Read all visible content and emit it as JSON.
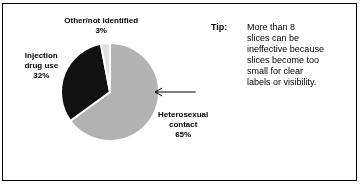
{
  "chart_data": {
    "type": "pie",
    "categories": [
      "Heterosexual\ncontact",
      "Injection\ndrug use",
      "Other/not identified"
    ],
    "values": [
      65,
      32,
      3
    ],
    "value_labels": [
      "65%",
      "32%",
      "3%"
    ],
    "data_labels": true,
    "colors": [
      "#b2b2b2",
      "#111111",
      "#e0e0e0"
    ],
    "annotations": [
      "Tip:",
      "More than 8\nslices can be\nineffective because\nslices become too\nsmall for clear\nlabels or visibility."
    ]
  }
}
